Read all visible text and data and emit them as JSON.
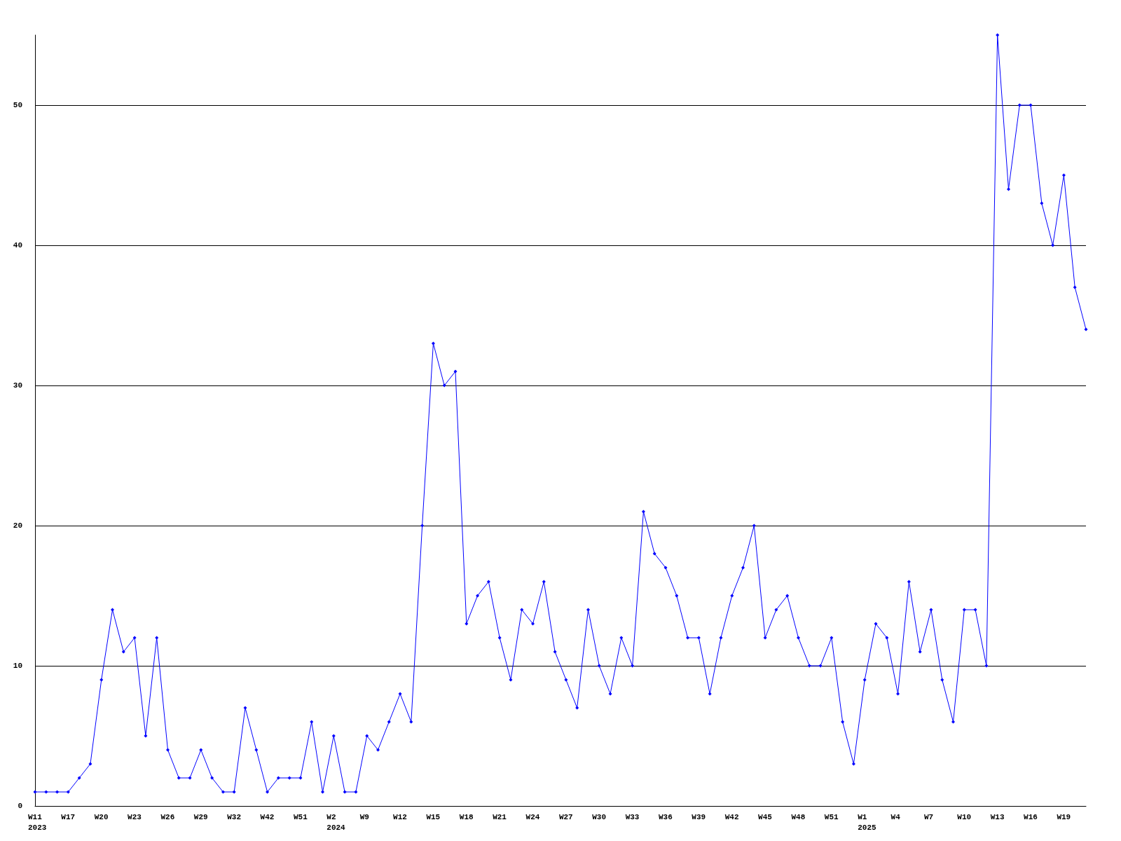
{
  "chart_data": {
    "type": "line",
    "categories": [
      "W11\n2023",
      null,
      null,
      "W17",
      null,
      null,
      "W20",
      null,
      null,
      "W23",
      null,
      null,
      "W26",
      null,
      null,
      "W29",
      null,
      null,
      "W32",
      null,
      null,
      "W42",
      null,
      null,
      "W51",
      null,
      null,
      "W2\n2024",
      null,
      null,
      "W9",
      null,
      null,
      "W12",
      null,
      null,
      "W15",
      null,
      null,
      "W18",
      null,
      null,
      "W21",
      null,
      null,
      "W24",
      null,
      null,
      "W27",
      null,
      null,
      "W30",
      null,
      null,
      "W33",
      null,
      null,
      "W36",
      null,
      null,
      "W39",
      null,
      null,
      "W42",
      null,
      null,
      "W45",
      null,
      null,
      "W48",
      null,
      null,
      "W51",
      null,
      null,
      "W1\n2025",
      null,
      null,
      "W4",
      null,
      null,
      "W7",
      null,
      null,
      "W10",
      null,
      null,
      "W13",
      null,
      null,
      "W16",
      null,
      null,
      "W19",
      null,
      null
    ],
    "series": [
      {
        "color": "#0000ff",
        "values": [
          1,
          1,
          1,
          1,
          2,
          3,
          9,
          14,
          11,
          12,
          5,
          12,
          4,
          2,
          2,
          4,
          2,
          1,
          1,
          7,
          4,
          1,
          2,
          2,
          2,
          6,
          1,
          5,
          1,
          1,
          5,
          4,
          6,
          8,
          6,
          20,
          33,
          30,
          31,
          13,
          15,
          16,
          12,
          9,
          14,
          13,
          16,
          11,
          9,
          7,
          14,
          10,
          8,
          12,
          10,
          21,
          18,
          17,
          15,
          12,
          12,
          8,
          12,
          15,
          17,
          20,
          12,
          14,
          15,
          12,
          10,
          10,
          12,
          6,
          3,
          9,
          13,
          12,
          8,
          16,
          11,
          14,
          9,
          6,
          14,
          14,
          10,
          55,
          44,
          50,
          50,
          43,
          40,
          45,
          37,
          34
        ]
      }
    ],
    "ylim": [
      0,
      55
    ],
    "yticks": [
      0,
      10,
      20,
      30,
      40,
      50
    ],
    "grid": "y",
    "marker": "diamond",
    "line_style": "solid"
  }
}
